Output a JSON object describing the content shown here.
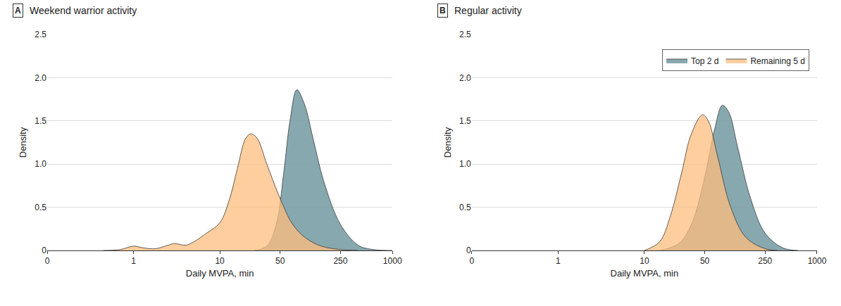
{
  "chart_data": [
    {
      "type": "area",
      "panel_label": "A",
      "title": "Weekend warrior activity",
      "x_label": "Daily MVPA, min",
      "y_label": "Density",
      "log": "x",
      "grid": true,
      "xlim": [
        0.1,
        1000
      ],
      "xticks": [
        {
          "value": 0.1,
          "label": "0"
        },
        1,
        10,
        50,
        250,
        1000
      ],
      "ylim": [
        0,
        2.5
      ],
      "yticks": [
        0,
        {
          "value": 0.5,
          "label": "0.5"
        },
        {
          "value": 1,
          "label": "1.0"
        },
        {
          "value": 1.5,
          "label": "1.5"
        },
        {
          "value": 2,
          "label": "2.0"
        },
        {
          "value": 2.5,
          "label": "2.5"
        }
      ],
      "series": [
        {
          "name": "Top 2 d",
          "color": "#7a9ea6",
          "x": [
            25,
            35,
            45,
            55,
            65,
            78,
            95,
            120,
            160,
            250,
            400,
            600,
            1000
          ],
          "values": [
            0,
            0.05,
            0.3,
            0.9,
            1.5,
            1.86,
            1.7,
            1.3,
            0.8,
            0.3,
            0.06,
            0.01,
            0
          ]
        },
        {
          "name": "Remaining 5 d",
          "color": "#fdbe7e",
          "x": [
            0.45,
            0.7,
            1,
            1.3,
            1.8,
            2.5,
            3,
            4,
            5,
            7,
            10,
            13,
            16,
            20,
            23,
            27,
            35,
            50,
            70,
            100,
            150,
            250,
            400
          ],
          "values": [
            0,
            0.01,
            0.05,
            0.03,
            0.02,
            0.06,
            0.08,
            0.06,
            0.1,
            0.2,
            0.32,
            0.6,
            0.95,
            1.3,
            1.35,
            1.3,
            1.0,
            0.6,
            0.3,
            0.14,
            0.05,
            0.01,
            0
          ]
        }
      ]
    },
    {
      "type": "area",
      "panel_label": "B",
      "title": "Regular activity",
      "x_label": "Daily MVPA, min",
      "y_label": "Density",
      "log": "x",
      "grid": true,
      "legend": "top right",
      "xlim": [
        0.1,
        1000
      ],
      "xticks": [
        {
          "value": 0.1,
          "label": "0"
        },
        1,
        10,
        50,
        250,
        1000
      ],
      "ylim": [
        0,
        2.5
      ],
      "yticks": [
        0,
        {
          "value": 0.5,
          "label": "0.5"
        },
        {
          "value": 1,
          "label": "1.0"
        },
        {
          "value": 1.5,
          "label": "1.5"
        },
        {
          "value": 2,
          "label": "2.0"
        },
        {
          "value": 2.5,
          "label": "2.5"
        }
      ],
      "series": [
        {
          "name": "Top 2 d",
          "color": "#7a9ea6",
          "x": [
            15,
            25,
            35,
            50,
            65,
            80,
            95,
            120,
            170,
            250,
            400,
            600
          ],
          "values": [
            0,
            0.08,
            0.3,
            0.85,
            1.4,
            1.68,
            1.6,
            1.2,
            0.6,
            0.2,
            0.03,
            0
          ]
        },
        {
          "name": "Remaining 5 d",
          "color": "#fdbe7e",
          "x": [
            10,
            15,
            20,
            27,
            35,
            47,
            55,
            70,
            100,
            150,
            250,
            350
          ],
          "values": [
            0,
            0.1,
            0.4,
            0.9,
            1.35,
            1.57,
            1.5,
            1.1,
            0.5,
            0.15,
            0.02,
            0
          ]
        }
      ]
    }
  ]
}
